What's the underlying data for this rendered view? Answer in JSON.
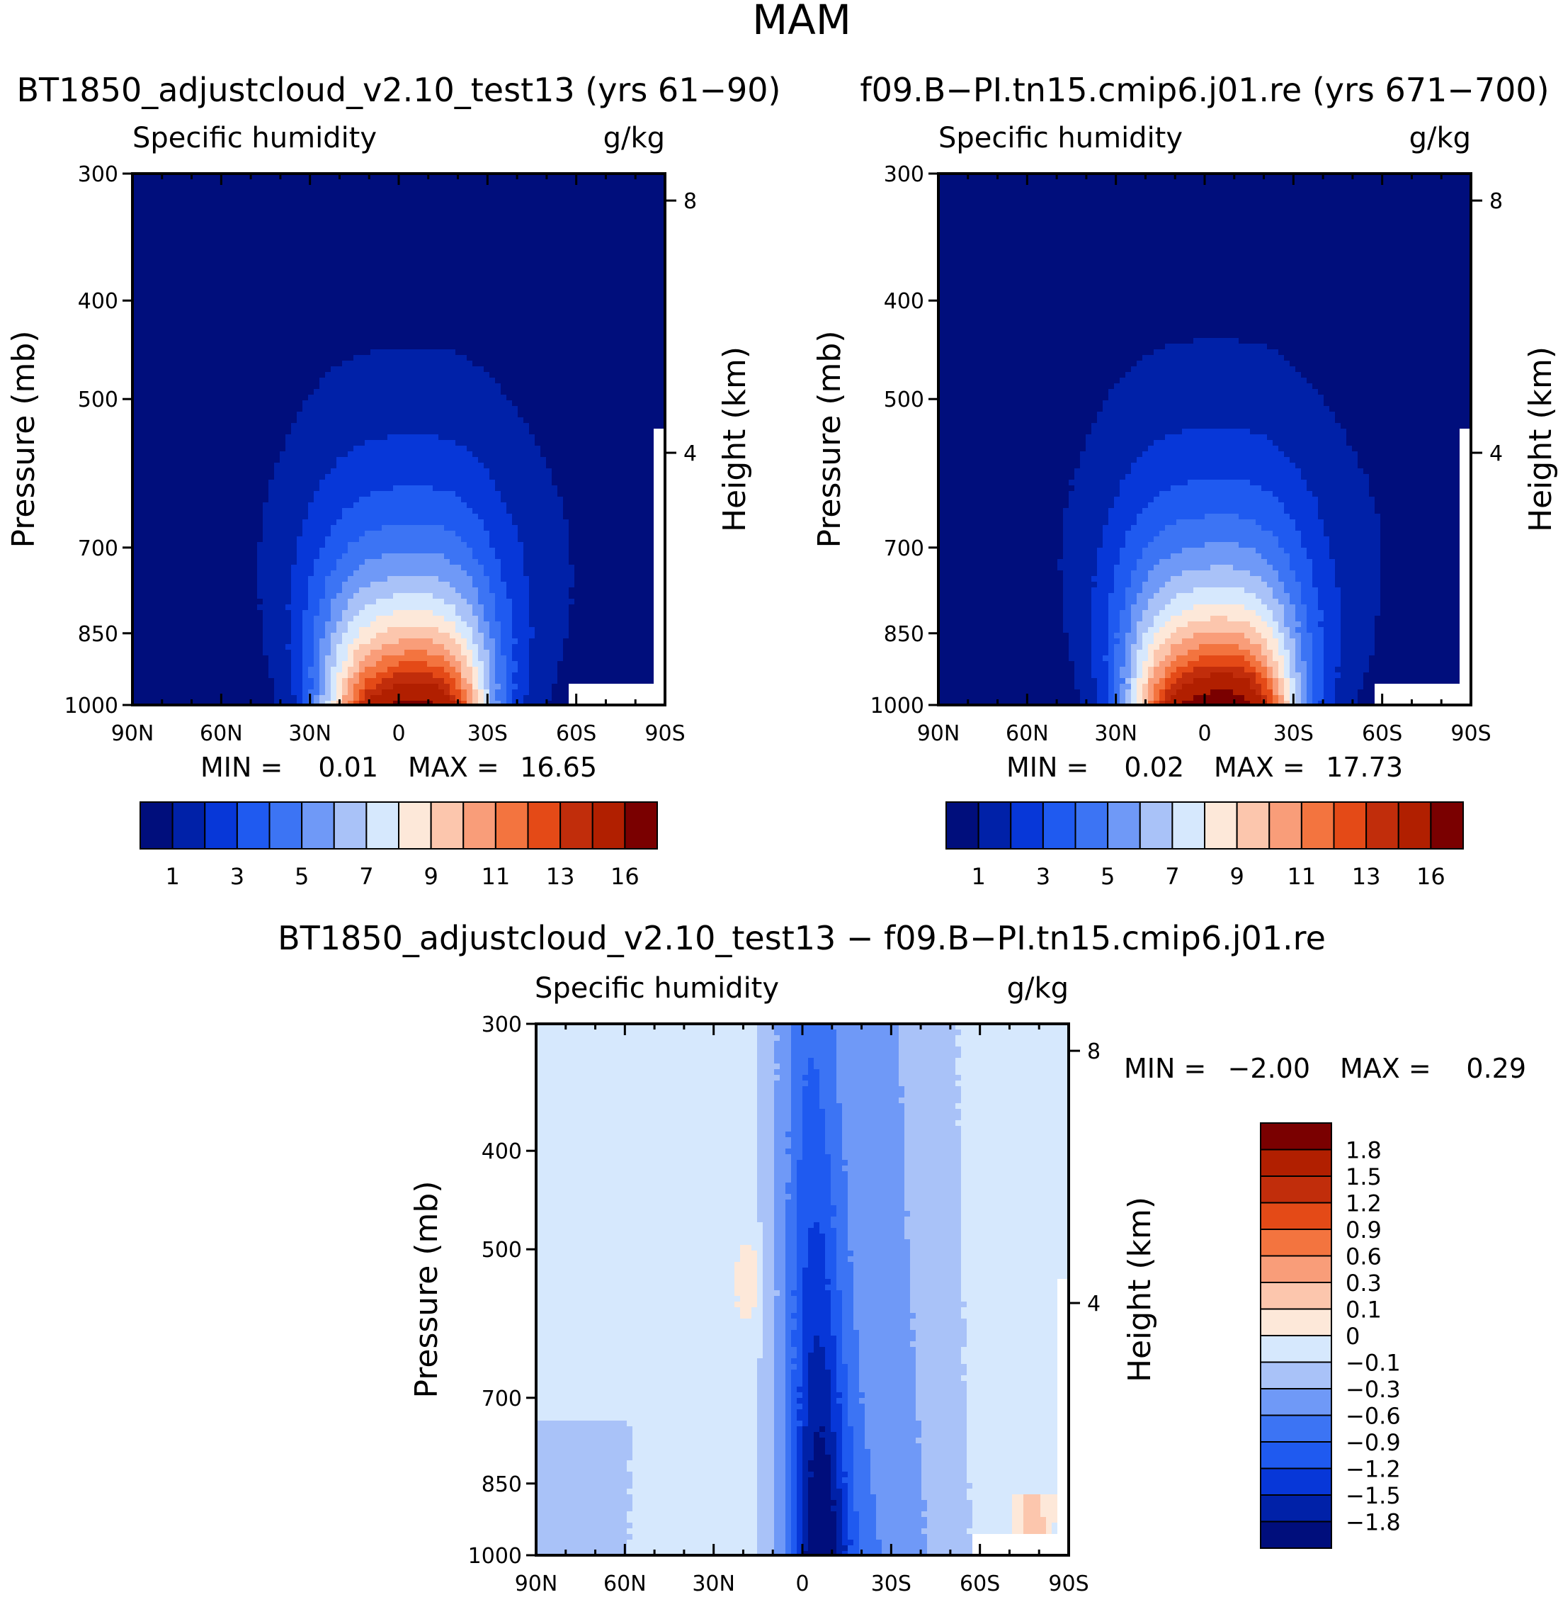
{
  "figure_title": "MAM",
  "colors": {
    "levels": [
      "#000e7c",
      "#0021a8",
      "#0737d8",
      "#1f5af0",
      "#3c74f4",
      "#6f99f7",
      "#a9c2f8",
      "#d6e8fd",
      "#fde8d9",
      "#fcc6ad",
      "#f99d79",
      "#f3743f",
      "#e44a17",
      "#c12d0b",
      "#b11f00",
      "#7a0000"
    ]
  },
  "chart_data": [
    {
      "type": "heatmap",
      "panel": "top-left",
      "title": "BT1850_adjustcloud_v2.10_test13 (yrs 61−90)",
      "left_title": "Specific humidity",
      "right_title": "g/kg",
      "xlabel": "",
      "ylabel": "Pressure (mb)",
      "ylabel_right": "Height (km)",
      "x_ticks": [
        "90N",
        "60N",
        "30N",
        "0",
        "30S",
        "60S",
        "90S"
      ],
      "x_range": [
        90,
        -90
      ],
      "y_ticks": [
        "300",
        "400",
        "500",
        "700",
        "850",
        "1000"
      ],
      "y_range": [
        300,
        1000
      ],
      "y_ticks_right": [
        "8",
        "4"
      ],
      "min_label": "MIN =",
      "min_value": "0.01",
      "max_label": "MAX =",
      "max_value": "16.65",
      "min": 0.01,
      "max": 16.65,
      "peak_lat": 0,
      "colorbar_labels": [
        "1",
        "3",
        "5",
        "7",
        "9",
        "11",
        "13",
        "16"
      ]
    },
    {
      "type": "heatmap",
      "panel": "top-right",
      "title": "f09.B−PI.tn15.cmip6.j01.re (yrs 671−700)",
      "left_title": "Specific humidity",
      "right_title": "g/kg",
      "xlabel": "",
      "ylabel": "Pressure (mb)",
      "ylabel_right": "Height (km)",
      "x_ticks": [
        "90N",
        "60N",
        "30N",
        "0",
        "30S",
        "60S",
        "90S"
      ],
      "x_range": [
        90,
        -90
      ],
      "y_ticks": [
        "300",
        "400",
        "500",
        "700",
        "850",
        "1000"
      ],
      "y_range": [
        300,
        1000
      ],
      "y_ticks_right": [
        "8",
        "4"
      ],
      "min_label": "MIN =",
      "min_value": "0.02",
      "max_label": "MAX =",
      "max_value": "17.73",
      "min": 0.02,
      "max": 17.73,
      "peak_lat": 0,
      "colorbar_labels": [
        "1",
        "3",
        "5",
        "7",
        "9",
        "11",
        "13",
        "16"
      ]
    },
    {
      "type": "heatmap",
      "panel": "bottom-difference",
      "title": "BT1850_adjustcloud_v2.10_test13 − f09.B−PI.tn15.cmip6.j01.re",
      "left_title": "Specific humidity",
      "right_title": "g/kg",
      "xlabel": "",
      "ylabel": "Pressure (mb)",
      "ylabel_right": "Height (km)",
      "x_ticks": [
        "90N",
        "60N",
        "30N",
        "0",
        "30S",
        "60S",
        "90S"
      ],
      "x_range": [
        90,
        -90
      ],
      "y_ticks": [
        "300",
        "400",
        "500",
        "700",
        "850",
        "1000"
      ],
      "y_range": [
        300,
        1000
      ],
      "y_ticks_right": [
        "8",
        "4"
      ],
      "min_label": "MIN =",
      "min_value": "−2.00",
      "max_label": "MAX =",
      "max_value": "0.29",
      "min": -2.0,
      "max": 0.29,
      "colorbar_labels": [
        "1.8",
        "1.5",
        "1.2",
        "0.9",
        "0.6",
        "0.3",
        "0.1",
        "0",
        "−0.1",
        "−0.3",
        "−0.6",
        "−0.9",
        "−1.2",
        "−1.5",
        "−1.8"
      ]
    }
  ]
}
